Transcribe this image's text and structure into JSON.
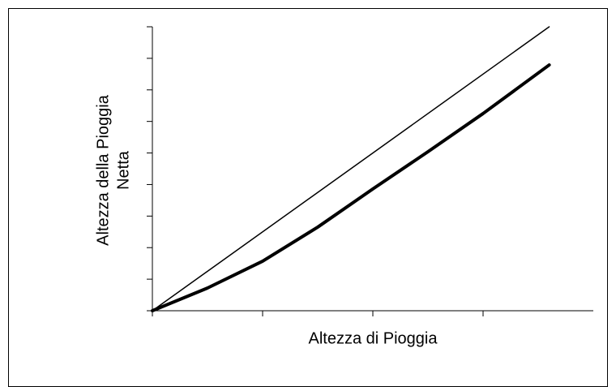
{
  "chart_data": {
    "type": "line",
    "xlabel": "Altezza di Pioggia",
    "ylabel": [
      "Altezza della Pioggia",
      "Netta"
    ],
    "xlim": [
      0,
      4
    ],
    "ylim": [
      0,
      9
    ],
    "xticks": [
      0,
      1,
      2,
      3
    ],
    "yticks": [
      0,
      1,
      2,
      3,
      4,
      5,
      6,
      7,
      8,
      9
    ],
    "series": [
      {
        "color": "#000000",
        "line_width": 1.5,
        "x": [
          0,
          3.6
        ],
        "values": [
          0,
          9
        ]
      },
      {
        "color": "#000000",
        "line_width": 4,
        "x": [
          0,
          0.5,
          1,
          1.5,
          2,
          2.5,
          3,
          3.6
        ],
        "values": [
          0,
          0.72,
          1.57,
          2.65,
          3.86,
          5.04,
          6.25,
          7.79
        ]
      }
    ]
  }
}
